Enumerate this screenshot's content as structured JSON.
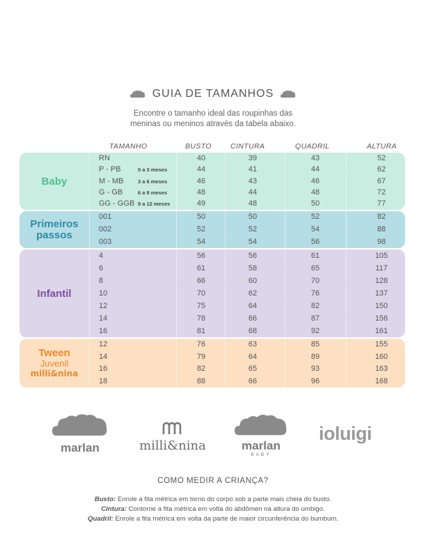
{
  "header": {
    "title": "GUIA DE TAMANHOS",
    "subtitle_line1": "Encontre o tamanho ideal das roupinhas das",
    "subtitle_line2": "meninas ou meninos através da tabela abaixo."
  },
  "columns": {
    "tamanho": "TAMANHO",
    "busto": "BUSTO",
    "cintura": "CINTURA",
    "quadril": "QUADRIL",
    "altura": "ALTURA"
  },
  "groups": {
    "baby": {
      "label": "Baby",
      "color": "#c9ede1",
      "text_color": "#4fc08f",
      "rows": [
        {
          "size": "RN",
          "age": "",
          "busto": "40",
          "cintura": "39",
          "quadril": "43",
          "altura": "52"
        },
        {
          "size": "P - PB",
          "age": "0 a 3 meses",
          "busto": "44",
          "cintura": "41",
          "quadril": "44",
          "altura": "62"
        },
        {
          "size": "M - MB",
          "age": "3 a 6 meses",
          "busto": "46",
          "cintura": "43",
          "quadril": "46",
          "altura": "67"
        },
        {
          "size": "G - GB",
          "age": "6 a 9 meses",
          "busto": "48",
          "cintura": "44",
          "quadril": "48",
          "altura": "72"
        },
        {
          "size": "GG - GGB",
          "age": "9 a 12 meses",
          "busto": "49",
          "cintura": "48",
          "quadril": "50",
          "altura": "77"
        }
      ]
    },
    "primeiros": {
      "label_line1": "Primeiros",
      "label_line2": "passos",
      "color": "#b5dde6",
      "text_color": "#2f8aa4",
      "rows": [
        {
          "size": "001",
          "busto": "50",
          "cintura": "50",
          "quadril": "52",
          "altura": "82"
        },
        {
          "size": "002",
          "busto": "52",
          "cintura": "52",
          "quadril": "54",
          "altura": "88"
        },
        {
          "size": "003",
          "busto": "54",
          "cintura": "54",
          "quadril": "56",
          "altura": "98"
        }
      ]
    },
    "infantil": {
      "label": "Infantil",
      "color": "#ddd5ea",
      "text_color": "#7e4fa0",
      "rows": [
        {
          "size": "4",
          "busto": "56",
          "cintura": "56",
          "quadril": "61",
          "altura": "105"
        },
        {
          "size": "6",
          "busto": "61",
          "cintura": "58",
          "quadril": "65",
          "altura": "117"
        },
        {
          "size": "8",
          "busto": "66",
          "cintura": "60",
          "quadril": "70",
          "altura": "128"
        },
        {
          "size": "10",
          "busto": "70",
          "cintura": "62",
          "quadril": "76",
          "altura": "137"
        },
        {
          "size": "12",
          "busto": "75",
          "cintura": "64",
          "quadril": "82",
          "altura": "150"
        },
        {
          "size": "14",
          "busto": "78",
          "cintura": "66",
          "quadril": "87",
          "altura": "156"
        },
        {
          "size": "16",
          "busto": "81",
          "cintura": "68",
          "quadril": "92",
          "altura": "161"
        }
      ]
    },
    "tween": {
      "label": "Tween",
      "label_line2": "Juvenil",
      "label_line3": "milli&nina",
      "color": "#fde0c2",
      "text_color": "#e78a2c",
      "rows": [
        {
          "size": "12",
          "busto": "76",
          "cintura": "63",
          "quadril": "85",
          "altura": "155"
        },
        {
          "size": "14",
          "busto": "79",
          "cintura": "64",
          "quadril": "89",
          "altura": "160"
        },
        {
          "size": "16",
          "busto": "82",
          "cintura": "65",
          "quadril": "93",
          "altura": "163"
        },
        {
          "size": "18",
          "busto": "88",
          "cintura": "66",
          "quadril": "96",
          "altura": "168"
        }
      ]
    }
  },
  "logos": {
    "marlan": "marlan",
    "millinina": "milli&nina",
    "marlan_baby": "marlan",
    "marlan_baby_sub": "BABY",
    "ioluigi": "ioluigi"
  },
  "measure": {
    "title": "COMO MEDIR A CRIANÇA?",
    "busto_label": "Busto:",
    "busto_text": "Enrole a fita métrica em torno do corpo sob a parte mais cheia do busto.",
    "cintura_label": "Cintura:",
    "cintura_text": "Contorne a fita métrica em volta do abdômen na altura do umbigo.",
    "quadril_label": "Quadril:",
    "quadril_text": "Enrole a fita métrica em volta da parte de maior circunferência do bumbum."
  }
}
